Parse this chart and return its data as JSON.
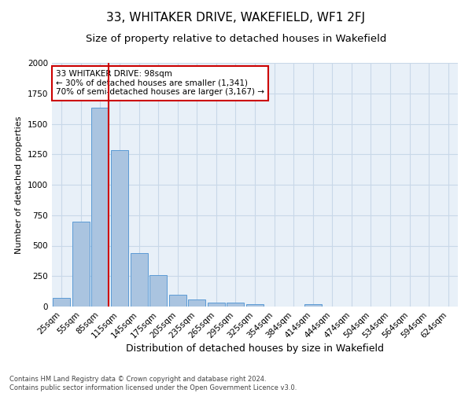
{
  "title": "33, WHITAKER DRIVE, WAKEFIELD, WF1 2FJ",
  "subtitle": "Size of property relative to detached houses in Wakefield",
  "xlabel": "Distribution of detached houses by size in Wakefield",
  "ylabel": "Number of detached properties",
  "footer_line1": "Contains HM Land Registry data © Crown copyright and database right 2024.",
  "footer_line2": "Contains public sector information licensed under the Open Government Licence v3.0.",
  "bin_labels": [
    "25sqm",
    "55sqm",
    "85sqm",
    "115sqm",
    "145sqm",
    "175sqm",
    "205sqm",
    "235sqm",
    "265sqm",
    "295sqm",
    "325sqm",
    "354sqm",
    "384sqm",
    "414sqm",
    "444sqm",
    "474sqm",
    "504sqm",
    "534sqm",
    "564sqm",
    "594sqm",
    "624sqm"
  ],
  "bar_values": [
    70,
    695,
    1635,
    1285,
    440,
    255,
    95,
    55,
    35,
    30,
    18,
    0,
    0,
    20,
    0,
    0,
    0,
    0,
    0,
    0,
    0
  ],
  "bar_color": "#aac4e0",
  "bar_edge_color": "#5b9bd5",
  "grid_color": "#c8d8e8",
  "bg_color": "#e8f0f8",
  "red_line_color": "#cc0000",
  "annotation_line1": "33 WHITAKER DRIVE: 98sqm",
  "annotation_line2": "← 30% of detached houses are smaller (1,341)",
  "annotation_line3": "70% of semi-detached houses are larger (3,167) →",
  "annotation_box_color": "#cc0000",
  "ylim": [
    0,
    2000
  ],
  "title_fontsize": 11,
  "subtitle_fontsize": 9.5,
  "xlabel_fontsize": 9,
  "ylabel_fontsize": 8,
  "tick_fontsize": 7.5,
  "annotation_fontsize": 7.5
}
